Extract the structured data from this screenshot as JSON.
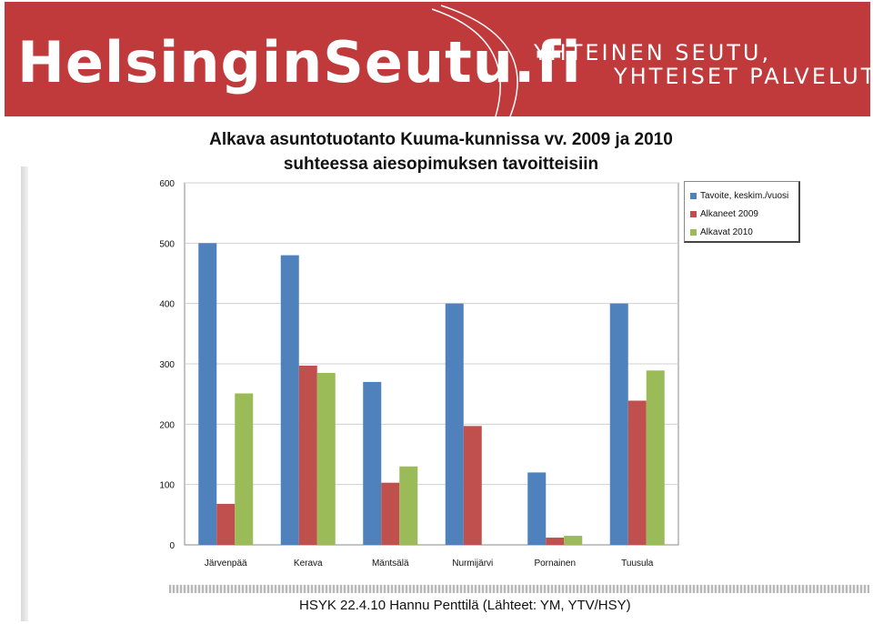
{
  "header": {
    "logo_text": "HelsinginSeutu.fi",
    "tagline_line1": "YHTEINEN SEUTU,",
    "tagline_line2": "YHTEISET PALVELUT",
    "banner_color": "#c0393b"
  },
  "footer": {
    "text": "HSYK 22.4.10 Hannu Penttilä  (Lähteet: YM, YTV/HSY)"
  },
  "chart_data": {
    "type": "bar",
    "title_line1": "Alkava asuntotuotanto Kuuma-kunnissa vv. 2009 ja 2010",
    "title_line2": "suhteessa aiesopimuksen tavoitteisiin",
    "categories": [
      "Järvenpää",
      "Kerava",
      "Mäntsälä",
      "Nurmijärvi",
      "Pornainen",
      "Tuusula"
    ],
    "series": [
      {
        "name": "Tavoite, keskim./vuosi",
        "color": "#4f81bd",
        "values": [
          500,
          480,
          270,
          400,
          120,
          400
        ]
      },
      {
        "name": "Alkaneet 2009",
        "color": "#c0504d",
        "values": [
          68,
          297,
          103,
          197,
          12,
          239
        ]
      },
      {
        "name": "Alkavat 2010",
        "color": "#9bbb59",
        "values": [
          251,
          285,
          130,
          null,
          15,
          289
        ]
      }
    ],
    "yticks": [
      0,
      100,
      200,
      300,
      400,
      500,
      600
    ],
    "ylim": [
      0,
      600
    ],
    "grid": true,
    "legend_position": "right"
  }
}
